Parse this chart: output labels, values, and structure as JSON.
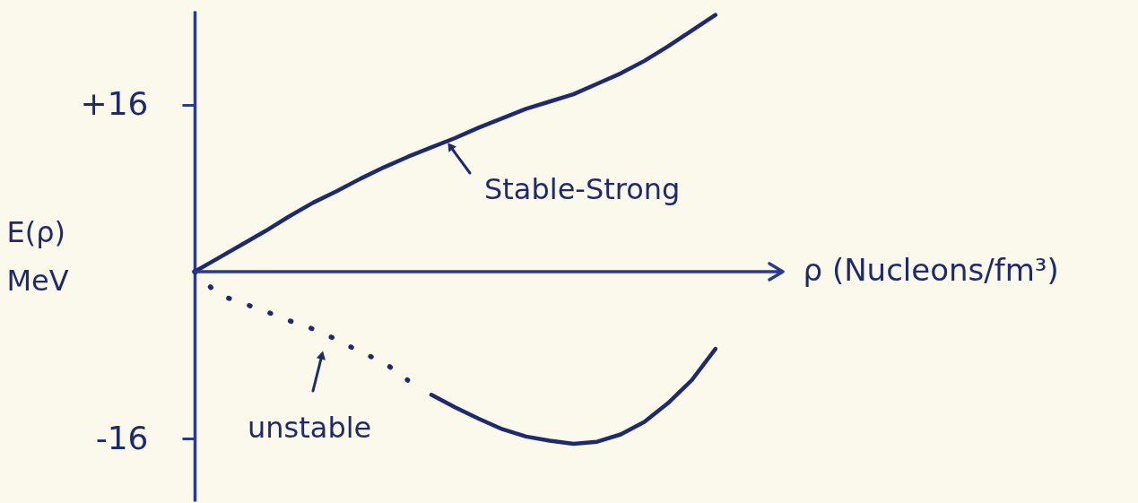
{
  "chart_data": {
    "type": "line",
    "xlabel": "ρ (Nucleons/fm³)",
    "ylabel": "E(ρ)\nMeV",
    "categories": [
      null,
      null,
      null,
      null,
      null,
      null,
      null,
      null,
      null,
      null,
      null,
      null,
      null,
      null,
      null,
      null,
      null,
      null,
      null,
      null,
      null,
      null,
      null
    ],
    "series": [
      {
        "color": "#1f2a6e",
        "values": [
          0,
          1.3,
          2.6,
          3.9,
          5.3,
          6.6,
          7.7,
          8.9,
          10.0,
          11.0,
          11.9,
          12.8,
          13.8,
          14.7,
          15.6,
          16.3,
          17.0,
          18.0,
          19.0,
          20.2,
          21.6,
          23.1,
          24.6
        ]
      },
      {
        "color": "#1f2a6e",
        "line_style": "dotted",
        "values": [
          0,
          -2.2,
          -3.0,
          -3.8,
          -4.7,
          -5.5,
          -6.5,
          -7.7,
          -8.7,
          -10.4,
          null,
          null,
          null,
          null,
          null,
          null,
          null,
          null,
          null,
          null,
          null,
          null,
          null
        ]
      },
      {
        "color": "#1f2a6e",
        "values": [
          null,
          null,
          null,
          null,
          null,
          null,
          null,
          null,
          null,
          null,
          -11.8,
          -13.0,
          -14.1,
          -15.1,
          -15.8,
          -16.2,
          -16.5,
          -16.3,
          -15.6,
          -14.4,
          -12.6,
          -10.4,
          -7.4
        ]
      }
    ],
    "ylim": [
      -22,
      25
    ],
    "yticks": [
      {
        "value": 16,
        "label": "+16"
      },
      {
        "value": -16,
        "label": "-16"
      }
    ],
    "ref_lines": [
      {
        "axis": "y",
        "value": 0
      }
    ],
    "annotations": [
      "Stable-Strong",
      "unstable"
    ]
  }
}
